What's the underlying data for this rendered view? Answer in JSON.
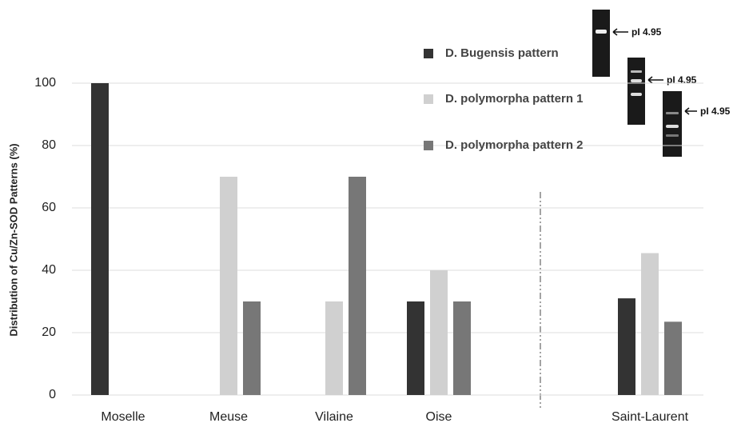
{
  "chart_data": {
    "type": "bar",
    "y_label": "Distribution of Cu/Zn-SOD Patterns (%)",
    "categories": [
      "Moselle",
      "Meuse",
      "Vilaine",
      "Oise",
      "Saint-Laurent"
    ],
    "series": [
      {
        "name": "D. Bugensis pattern",
        "color": "#333333",
        "values": [
          100,
          0,
          0,
          30,
          31
        ]
      },
      {
        "name": "D. polymorpha pattern 1",
        "color": "#d0d0d0",
        "values": [
          0,
          70,
          30,
          40,
          45.5
        ]
      },
      {
        "name": "D. polymorpha pattern 2",
        "color": "#777777",
        "values": [
          0,
          30,
          70,
          30,
          23.5
        ]
      }
    ],
    "annotations": [
      "pI 4.95",
      "pI 4.95",
      "pI 4.95"
    ],
    "ylim": [
      0,
      100
    ],
    "yticks": [
      0,
      20,
      40,
      60,
      80,
      100
    ],
    "grid": true
  }
}
